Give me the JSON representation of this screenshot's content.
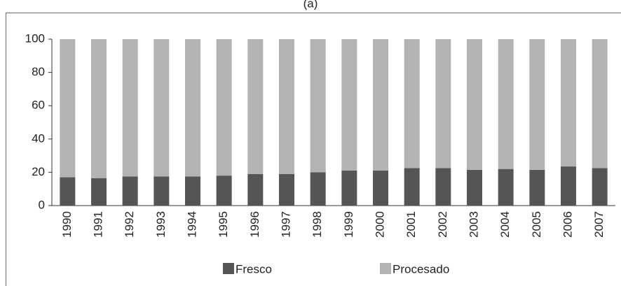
{
  "chart_data": {
    "type": "stacked_bar",
    "title": "(a)",
    "categories": [
      "1990",
      "1991",
      "1992",
      "1993",
      "1994",
      "1995",
      "1996",
      "1997",
      "1998",
      "1999",
      "2000",
      "2001",
      "2002",
      "2003",
      "2004",
      "2005",
      "2006",
      "2007"
    ],
    "series": [
      {
        "name": "Fresco",
        "color": "#555555",
        "values": [
          17,
          16.5,
          17.5,
          17.5,
          17.5,
          18,
          19,
          19,
          20,
          21,
          21,
          22.5,
          22.5,
          21.5,
          22,
          21.5,
          23.5,
          22.5
        ]
      },
      {
        "name": "Procesado",
        "color": "#b3b3b3",
        "values": [
          83,
          83.5,
          82.5,
          82.5,
          82.5,
          82,
          81,
          81,
          80,
          79,
          79,
          77.5,
          77.5,
          78.5,
          78,
          78.5,
          76.5,
          77.5
        ]
      }
    ],
    "ylim": [
      0,
      100
    ],
    "yticks": [
      0,
      20,
      40,
      60,
      80,
      100
    ],
    "grid": false,
    "legend": "bottom"
  }
}
